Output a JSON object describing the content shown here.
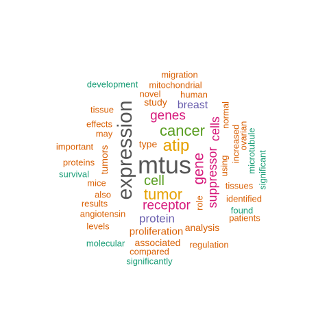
{
  "words": [
    {
      "text": "mtus",
      "color": "#555555"
    },
    {
      "text": "expression",
      "color": "#555555"
    },
    {
      "text": "cancer",
      "color": "#5a9e22"
    },
    {
      "text": "atip",
      "color": "#e6a100"
    },
    {
      "text": "tumor",
      "color": "#e6a100"
    },
    {
      "text": "cell",
      "color": "#5a9e22"
    },
    {
      "text": "genes",
      "color": "#d6177a"
    },
    {
      "text": "receptor",
      "color": "#d6177a"
    },
    {
      "text": "gene",
      "color": "#d6177a"
    },
    {
      "text": "suppressor",
      "color": "#d6177a"
    },
    {
      "text": "cells",
      "color": "#d6177a"
    },
    {
      "text": "breast",
      "color": "#6a5fae"
    },
    {
      "text": "protein",
      "color": "#6a5fae"
    },
    {
      "text": "type",
      "color": "#d95f02"
    },
    {
      "text": "study",
      "color": "#d95f02"
    },
    {
      "text": "novel",
      "color": "#d95f02"
    },
    {
      "text": "human",
      "color": "#d95f02"
    },
    {
      "text": "mitochondrial",
      "color": "#d95f02"
    },
    {
      "text": "migration",
      "color": "#d95f02"
    },
    {
      "text": "development",
      "color": "#1b9e77"
    },
    {
      "text": "tissue",
      "color": "#d95f02"
    },
    {
      "text": "effects",
      "color": "#d95f02"
    },
    {
      "text": "may",
      "color": "#d95f02"
    },
    {
      "text": "important",
      "color": "#d95f02"
    },
    {
      "text": "tumors",
      "color": "#d95f02"
    },
    {
      "text": "proteins",
      "color": "#d95f02"
    },
    {
      "text": "survival",
      "color": "#1b9e77"
    },
    {
      "text": "mice",
      "color": "#d95f02"
    },
    {
      "text": "also",
      "color": "#d95f02"
    },
    {
      "text": "results",
      "color": "#d95f02"
    },
    {
      "text": "angiotensin",
      "color": "#d95f02"
    },
    {
      "text": "levels",
      "color": "#d95f02"
    },
    {
      "text": "proliferation",
      "color": "#d95f02"
    },
    {
      "text": "molecular",
      "color": "#1b9e77"
    },
    {
      "text": "associated",
      "color": "#d95f02"
    },
    {
      "text": "compared",
      "color": "#d95f02"
    },
    {
      "text": "significantly",
      "color": "#1b9e77"
    },
    {
      "text": "regulation",
      "color": "#d95f02"
    },
    {
      "text": "analysis",
      "color": "#d95f02"
    },
    {
      "text": "role",
      "color": "#d95f02"
    },
    {
      "text": "using",
      "color": "#d95f02"
    },
    {
      "text": "normal",
      "color": "#d95f02"
    },
    {
      "text": "increased",
      "color": "#d95f02"
    },
    {
      "text": "ovarian",
      "color": "#d95f02"
    },
    {
      "text": "microtubule",
      "color": "#1b9e77"
    },
    {
      "text": "significant",
      "color": "#1b9e77"
    },
    {
      "text": "tissues",
      "color": "#d95f02"
    },
    {
      "text": "identified",
      "color": "#d95f02"
    },
    {
      "text": "found",
      "color": "#1b9e77"
    },
    {
      "text": "patients",
      "color": "#d95f02"
    }
  ]
}
